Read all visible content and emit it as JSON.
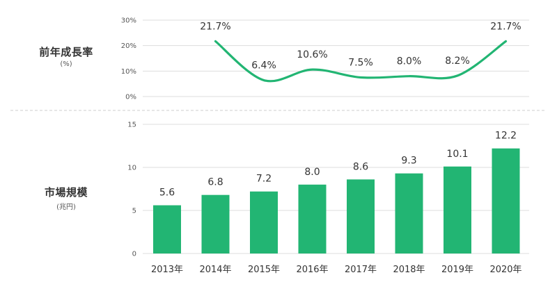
{
  "colors": {
    "accent": "#22b573",
    "grid": "#dddddd",
    "divider": "#cccccc"
  },
  "growth_label": {
    "title": "前年成長率",
    "unit": "(%)"
  },
  "size_label": {
    "title": "市場規模",
    "unit": "(兆円)"
  },
  "chart_data": [
    {
      "type": "line",
      "title": "前年成長率",
      "ylabel": "(%)",
      "categories": [
        "2014年",
        "2015年",
        "2016年",
        "2017年",
        "2018年",
        "2019年",
        "2020年"
      ],
      "values": [
        21.7,
        6.4,
        10.6,
        7.5,
        8.0,
        8.2,
        21.7
      ],
      "data_labels": [
        "21.7%",
        "6.4%",
        "10.6%",
        "7.5%",
        "8.0%",
        "8.2%",
        "21.7%"
      ],
      "yticks": [
        "0%",
        "10%",
        "20%",
        "30%"
      ],
      "ylim": [
        0,
        30
      ],
      "grid": true
    },
    {
      "type": "bar",
      "title": "市場規模",
      "ylabel": "(兆円)",
      "categories": [
        "2013年",
        "2014年",
        "2015年",
        "2016年",
        "2017年",
        "2018年",
        "2019年",
        "2020年"
      ],
      "values": [
        5.6,
        6.8,
        7.2,
        8.0,
        8.6,
        9.3,
        10.1,
        12.2
      ],
      "data_labels": [
        "5.6",
        "6.8",
        "7.2",
        "8.0",
        "8.6",
        "9.3",
        "10.1",
        "12.2"
      ],
      "yticks": [
        "0",
        "5",
        "10",
        "15"
      ],
      "ylim": [
        0,
        15
      ],
      "grid": true
    }
  ]
}
